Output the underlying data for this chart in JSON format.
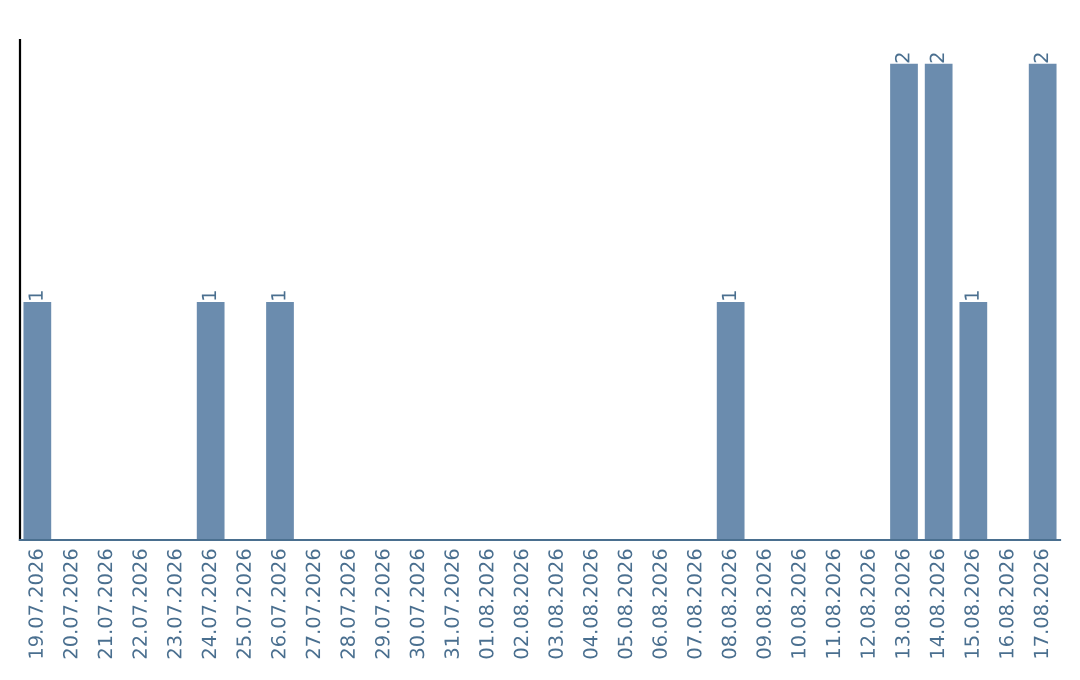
{
  "chart_data": {
    "type": "bar",
    "categories": [
      "19.07.2026",
      "20.07.2026",
      "21.07.2026",
      "22.07.2026",
      "23.07.2026",
      "24.07.2026",
      "25.07.2026",
      "26.07.2026",
      "27.07.2026",
      "28.07.2026",
      "29.07.2026",
      "30.07.2026",
      "31.07.2026",
      "01.08.2026",
      "02.08.2026",
      "03.08.2026",
      "04.08.2026",
      "05.08.2026",
      "06.08.2026",
      "07.08.2026",
      "08.08.2026",
      "09.08.2026",
      "10.08.2026",
      "11.08.2026",
      "12.08.2026",
      "13.08.2026",
      "14.08.2026",
      "15.08.2026",
      "16.08.2026",
      "17.08.2026"
    ],
    "values": [
      1,
      0,
      0,
      0,
      0,
      1,
      0,
      1,
      0,
      0,
      0,
      0,
      0,
      0,
      0,
      0,
      0,
      0,
      0,
      0,
      1,
      0,
      0,
      0,
      0,
      2,
      2,
      1,
      0,
      2
    ],
    "value_labels": [
      "1",
      null,
      null,
      null,
      null,
      "1",
      null,
      "1",
      null,
      null,
      null,
      null,
      null,
      null,
      null,
      null,
      null,
      null,
      null,
      null,
      "1",
      null,
      null,
      null,
      null,
      "2",
      "2",
      "1",
      null,
      "2"
    ],
    "color": "#6b8cae",
    "ylim": [
      0,
      2.1
    ],
    "tick_labels": "x",
    "grid": false,
    "legend": false
  }
}
